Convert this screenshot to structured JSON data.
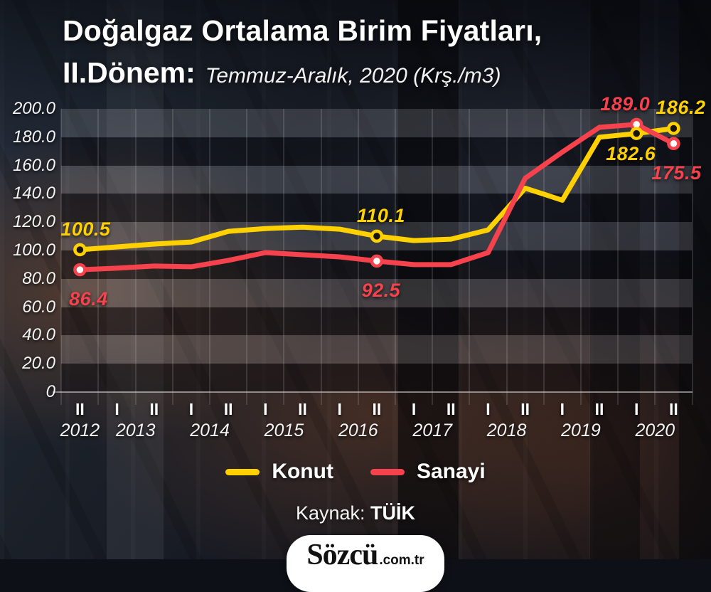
{
  "title": {
    "line1": "Doğalgaz Ortalama Birim Fiyatları,",
    "line2_bold": "II.Dönem:",
    "line2_sub": "Temmuz-Aralık, 2020 (Krş./m3)"
  },
  "chart_data": {
    "type": "line",
    "x_tick_labels": [
      "II",
      "I",
      "II",
      "I",
      "II",
      "I",
      "II",
      "I",
      "II",
      "I",
      "II",
      "I",
      "II",
      "I",
      "II",
      "I",
      "II"
    ],
    "years": [
      "2012",
      "2013",
      "2014",
      "2015",
      "2016",
      "2017",
      "2018",
      "2019",
      "2020"
    ],
    "y_tick_labels": [
      "200.0",
      "180.0",
      "160.0",
      "140.0",
      "120.0",
      "100.0",
      "80.0",
      "60.0",
      "40.0",
      "20.0",
      "0"
    ],
    "ylim": [
      0,
      200
    ],
    "grid": "banded",
    "legend_position": "bottom",
    "series": [
      {
        "name": "Konut",
        "color": "#ffd100",
        "marker_fill": "#18140a",
        "values": [
          100.5,
          102.5,
          104.5,
          106.0,
          113.5,
          115.5,
          116.5,
          115.0,
          110.1,
          107.0,
          108.0,
          114.5,
          144.0,
          135.5,
          180.0,
          182.6,
          186.2
        ]
      },
      {
        "name": "Sanayi",
        "color": "#f5424c",
        "marker_fill": "#ffffff",
        "values": [
          86.4,
          87.5,
          89.0,
          88.5,
          93.0,
          98.5,
          97.0,
          95.5,
          92.5,
          90.0,
          90.0,
          98.5,
          151.0,
          169.5,
          187.0,
          189.0,
          175.5
        ]
      }
    ],
    "annotations": [
      {
        "series": 0,
        "index": 0,
        "text": "100.5",
        "pos": "above",
        "dx": 8
      },
      {
        "series": 1,
        "index": 0,
        "text": "86.4",
        "pos": "below-far",
        "dx": 12
      },
      {
        "series": 0,
        "index": 8,
        "text": "110.1",
        "pos": "above",
        "dx": 6
      },
      {
        "series": 1,
        "index": 8,
        "text": "92.5",
        "pos": "below-far",
        "dx": 6
      },
      {
        "series": 1,
        "index": 15,
        "text": "189.0",
        "pos": "above",
        "dx": -16
      },
      {
        "series": 0,
        "index": 15,
        "text": "182.6",
        "pos": "below",
        "dx": -8
      },
      {
        "series": 0,
        "index": 16,
        "text": "186.2",
        "pos": "above",
        "dx": 10
      },
      {
        "series": 1,
        "index": 16,
        "text": "175.5",
        "pos": "below-far",
        "dx": 4
      }
    ]
  },
  "legend": [
    {
      "label": "Konut",
      "color": "#ffd100"
    },
    {
      "label": "Sanayi",
      "color": "#f5424c"
    }
  ],
  "source": {
    "prefix": "Kaynak: ",
    "value": "TÜİK"
  },
  "logo": {
    "main": "Sözcü",
    "suffix": ".com.tr"
  }
}
